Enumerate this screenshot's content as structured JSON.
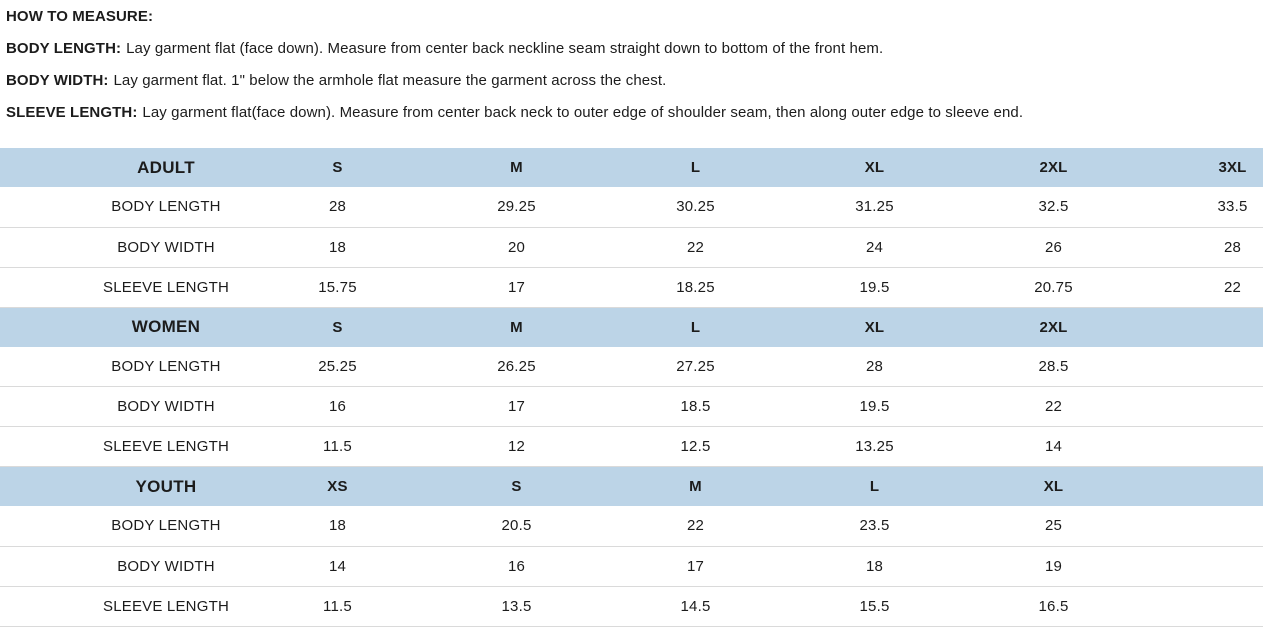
{
  "instructions": {
    "title": "HOW TO MEASURE:",
    "items": [
      {
        "label": "BODY LENGTH:",
        "text": "Lay garment flat (face down). Measure from center back neckline seam straight down to bottom of the front hem."
      },
      {
        "label": "BODY WIDTH:",
        "text": "Lay garment flat. 1\" below the armhole flat measure the garment across the chest."
      },
      {
        "label": "SLEEVE LENGTH:",
        "text": "Lay garment flat(face down). Measure from center back neck to outer edge of shoulder seam, then along outer edge to sleeve end."
      }
    ]
  },
  "tables": [
    {
      "group": "ADULT",
      "sizes": [
        "S",
        "M",
        "L",
        "XL",
        "2XL",
        "3XL"
      ],
      "rows": [
        {
          "label": "BODY LENGTH",
          "values": [
            "28",
            "29.25",
            "30.25",
            "31.25",
            "32.5",
            "33.5"
          ]
        },
        {
          "label": "BODY WIDTH",
          "values": [
            "18",
            "20",
            "22",
            "24",
            "26",
            "28"
          ]
        },
        {
          "label": "SLEEVE LENGTH",
          "values": [
            "15.75",
            "17",
            "18.25",
            "19.5",
            "20.75",
            "22"
          ]
        }
      ]
    },
    {
      "group": "WOMEN",
      "sizes": [
        "S",
        "M",
        "L",
        "XL",
        "2XL"
      ],
      "rows": [
        {
          "label": "BODY LENGTH",
          "values": [
            "25.25",
            "26.25",
            "27.25",
            "28",
            "28.5"
          ]
        },
        {
          "label": "BODY WIDTH",
          "values": [
            "16",
            "17",
            "18.5",
            "19.5",
            "22"
          ]
        },
        {
          "label": "SLEEVE LENGTH",
          "values": [
            "11.5",
            "12",
            "12.5",
            "13.25",
            "14"
          ]
        }
      ]
    },
    {
      "group": "YOUTH",
      "sizes": [
        "XS",
        "S",
        "M",
        "L",
        "XL"
      ],
      "rows": [
        {
          "label": "BODY LENGTH",
          "values": [
            "18",
            "20.5",
            "22",
            "23.5",
            "25"
          ]
        },
        {
          "label": "BODY WIDTH",
          "values": [
            "14",
            "16",
            "17",
            "18",
            "19"
          ]
        },
        {
          "label": "SLEEVE LENGTH",
          "values": [
            "11.5",
            "13.5",
            "14.5",
            "15.5",
            "16.5"
          ]
        }
      ]
    }
  ],
  "colors": {
    "header_bg": "#bcd4e7",
    "row_divider": "#dadada",
    "text": "#1c1c1c"
  }
}
